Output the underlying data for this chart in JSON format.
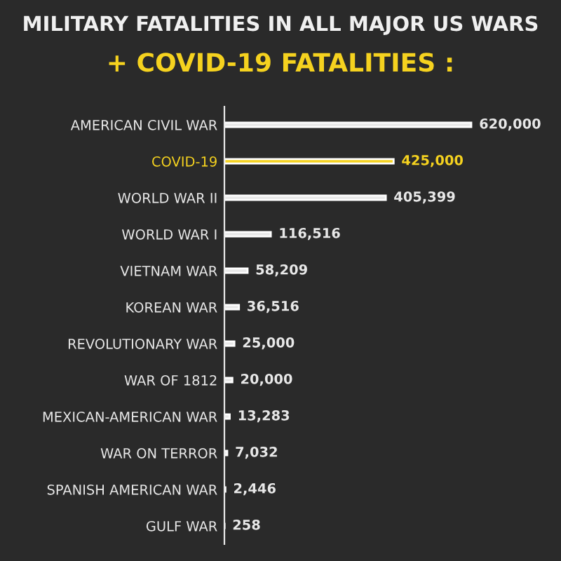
{
  "chart_data": {
    "type": "bar",
    "orientation": "horizontal",
    "title": "MILITARY FATALITIES IN ALL MAJOR US WARS",
    "subtitle": "+ COVID-19 FATALITIES :",
    "categories": [
      "AMERICAN CIVIL WAR",
      "COVID-19",
      "WORLD WAR II",
      "WORLD WAR I",
      "VIETNAM WAR",
      "KOREAN WAR",
      "REVOLUTIONARY WAR",
      "WAR OF 1812",
      "MEXICAN-AMERICAN WAR",
      "WAR ON TERROR",
      "SPANISH AMERICAN WAR",
      "GULF WAR"
    ],
    "values": [
      620000,
      425000,
      405399,
      116516,
      58209,
      36516,
      25000,
      20000,
      13283,
      7032,
      2446,
      258
    ],
    "value_labels": [
      "620,000",
      "425,000",
      "405,399",
      "116,516",
      "58,209",
      "36,516",
      "25,000",
      "20,000",
      "13,283",
      "7,032",
      "2,446",
      "258"
    ],
    "colors": [
      "#e8e8e8",
      "#f5d21f",
      "#e8e8e8",
      "#e8e8e8",
      "#e8e8e8",
      "#e8e8e8",
      "#e8e8e8",
      "#e8e8e8",
      "#e8e8e8",
      "#e8e8e8",
      "#e8e8e8",
      "#e8e8e8"
    ],
    "grid": false,
    "legend": false
  }
}
